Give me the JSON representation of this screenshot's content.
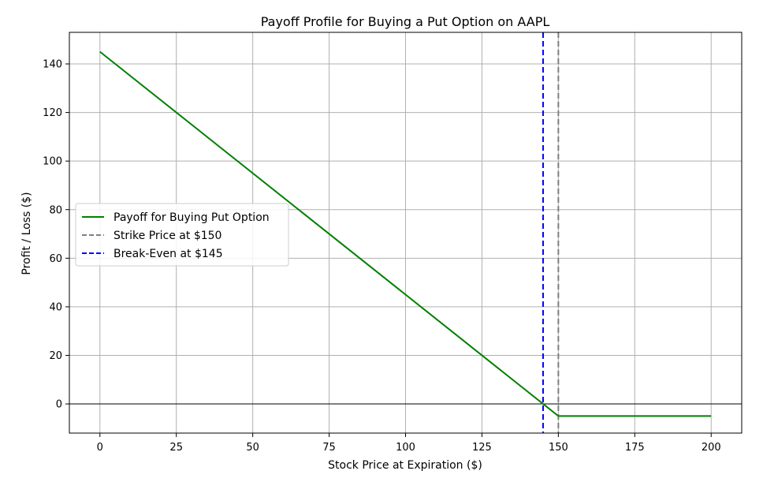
{
  "chart_data": {
    "type": "line",
    "title": "Payoff Profile for Buying a Put Option on AAPL",
    "xlabel": "Stock Price at Expiration ($)",
    "ylabel": "Profit / Loss ($)",
    "xlim": [
      -10,
      210
    ],
    "ylim": [
      -12,
      153
    ],
    "x_ticks": [
      0,
      25,
      50,
      75,
      100,
      125,
      150,
      175,
      200
    ],
    "y_ticks": [
      0,
      20,
      40,
      60,
      80,
      100,
      120,
      140
    ],
    "grid": true,
    "legend_position": "center-left",
    "series": [
      {
        "name": "Payoff for Buying Put Option",
        "color": "#008000",
        "style": "solid",
        "x": [
          0,
          150,
          200
        ],
        "y": [
          145,
          -5,
          -5
        ]
      }
    ],
    "reference_lines": [
      {
        "name": "Strike Price at $150",
        "orientation": "vertical",
        "x": 150,
        "color": "#808080",
        "style": "dashed"
      },
      {
        "name": "Break-Even at $145",
        "orientation": "vertical",
        "x": 145,
        "color": "#0000ff",
        "style": "dashed"
      },
      {
        "name": "",
        "orientation": "horizontal",
        "y": 0,
        "color": "#000000",
        "style": "solid"
      }
    ]
  }
}
